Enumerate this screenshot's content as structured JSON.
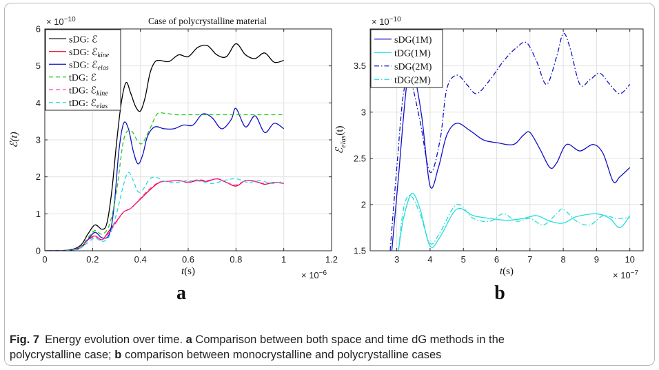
{
  "figure": {
    "caption": {
      "label": "Fig. 7",
      "line1_a": "Energy evolution over time.",
      "a": "a",
      "line1_b": "Comparison between both space and time dG methods in the",
      "line2_a": "polycrystalline case;",
      "b": "b",
      "line2_b": "comparison between monocrystalline and polycrystalline cases"
    },
    "panels": {
      "a": {
        "title": "Case of polycrystalline material",
        "letter": "a",
        "xlabel_var": "t",
        "xlabel_unit": "(s)",
        "ylabel": "ℰ(t)",
        "x_exponent": "× 10",
        "x_exponent_pow": "−6",
        "y_exponent": "× 10",
        "y_exponent_pow": "−10",
        "legend": [
          {
            "label": "sDG: ℰ",
            "sub": ""
          },
          {
            "label": "sDG: ℰ",
            "sub": "kine"
          },
          {
            "label": "sDG: ℰ",
            "sub": "elas"
          },
          {
            "label": "tDG: ℰ",
            "sub": ""
          },
          {
            "label": "tDG: ℰ",
            "sub": "kine"
          },
          {
            "label": "tDG: ℰ",
            "sub": "elas"
          }
        ]
      },
      "b": {
        "letter": "b",
        "xlabel_var": "t",
        "xlabel_unit": "(s)",
        "ylabel": "ℰ",
        "ylabel_sub": "elas",
        "ylabel_tail": "(t)",
        "x_exponent": "× 10",
        "x_exponent_pow": "−7",
        "y_exponent": "× 10",
        "y_exponent_pow": "−10",
        "legend": [
          {
            "label": "sDG(1M)"
          },
          {
            "label": "tDG(1M)"
          },
          {
            "label": "sDG(2M)"
          },
          {
            "label": "tDG(2M)"
          }
        ]
      }
    }
  },
  "chart_data": [
    {
      "type": "line",
      "title": "Case of polycrystalline material",
      "xlabel": "t(s)",
      "ylabel": "ℰ(t)",
      "x_scale": "×10^-6",
      "y_scale": "×10^-10",
      "xlim": [
        0,
        1.2
      ],
      "ylim": [
        0,
        6
      ],
      "xticks": [
        0,
        0.2,
        0.4,
        0.6,
        0.8,
        1,
        1.2
      ],
      "xtick_labels": [
        "0",
        "0.2",
        "0.4",
        "0.6",
        "0.8",
        "1",
        "1.2"
      ],
      "yticks": [
        0,
        1,
        2,
        3,
        4,
        5,
        6
      ],
      "ytick_labels": [
        "0",
        "1",
        "2",
        "3",
        "4",
        "5",
        "6"
      ],
      "grid": true,
      "legend_position": "top-left",
      "series": [
        {
          "name": "sDG: ℰ",
          "color": "#000000",
          "dash": "solid",
          "x": [
            0,
            0.1,
            0.15,
            0.18,
            0.21,
            0.24,
            0.26,
            0.28,
            0.3,
            0.32,
            0.34,
            0.36,
            0.38,
            0.4,
            0.42,
            0.44,
            0.46,
            0.48,
            0.52,
            0.56,
            0.6,
            0.64,
            0.68,
            0.72,
            0.76,
            0.8,
            0.84,
            0.88,
            0.92,
            0.96,
            1.0
          ],
          "y": [
            0,
            0.02,
            0.15,
            0.45,
            0.7,
            0.58,
            0.75,
            1.6,
            2.9,
            4.0,
            4.55,
            4.25,
            3.9,
            3.78,
            4.15,
            4.8,
            5.1,
            5.15,
            5.12,
            5.3,
            5.25,
            5.5,
            5.55,
            5.3,
            5.25,
            5.6,
            5.3,
            5.2,
            5.35,
            5.1,
            5.15
          ]
        },
        {
          "name": "sDG: ℰ_kine",
          "color": "#e8002c",
          "dash": "solid",
          "x": [
            0,
            0.1,
            0.15,
            0.18,
            0.21,
            0.24,
            0.27,
            0.3,
            0.33,
            0.36,
            0.4,
            0.44,
            0.48,
            0.52,
            0.56,
            0.6,
            0.64,
            0.68,
            0.72,
            0.76,
            0.8,
            0.84,
            0.88,
            0.92,
            0.96,
            1.0
          ],
          "y": [
            0,
            0.01,
            0.1,
            0.3,
            0.4,
            0.3,
            0.55,
            0.8,
            1.05,
            1.15,
            1.4,
            1.65,
            1.85,
            1.88,
            1.9,
            1.85,
            1.9,
            1.88,
            1.95,
            1.85,
            1.75,
            1.9,
            1.88,
            1.8,
            1.85,
            1.82
          ]
        },
        {
          "name": "sDG: ℰ_elas",
          "color": "#1010c8",
          "dash": "solid",
          "x": [
            0,
            0.1,
            0.15,
            0.18,
            0.21,
            0.24,
            0.27,
            0.29,
            0.31,
            0.33,
            0.35,
            0.37,
            0.39,
            0.41,
            0.43,
            0.46,
            0.5,
            0.54,
            0.58,
            0.62,
            0.66,
            0.7,
            0.74,
            0.78,
            0.8,
            0.84,
            0.88,
            0.92,
            0.96,
            1.0
          ],
          "y": [
            0,
            0.01,
            0.08,
            0.3,
            0.5,
            0.35,
            0.45,
            1.2,
            2.7,
            3.45,
            3.3,
            2.7,
            2.35,
            2.6,
            3.1,
            3.35,
            3.3,
            3.3,
            3.4,
            3.4,
            3.7,
            3.6,
            3.3,
            3.55,
            3.85,
            3.35,
            3.65,
            3.2,
            3.45,
            3.3
          ]
        },
        {
          "name": "tDG: ℰ",
          "color": "#22cc22",
          "dash": "dashed",
          "x": [
            0,
            0.1,
            0.15,
            0.18,
            0.21,
            0.24,
            0.27,
            0.3,
            0.33,
            0.36,
            0.39,
            0.41,
            0.44,
            0.47,
            0.5,
            0.55,
            0.6,
            0.7,
            0.8,
            0.9,
            1.0
          ],
          "y": [
            0,
            0.01,
            0.12,
            0.35,
            0.55,
            0.45,
            0.7,
            1.6,
            3.0,
            3.25,
            2.95,
            2.92,
            3.3,
            3.7,
            3.72,
            3.68,
            3.68,
            3.68,
            3.68,
            3.68,
            3.68
          ]
        },
        {
          "name": "tDG: ℰ_kine",
          "color": "#ff33cc",
          "dash": "dashed",
          "x": [
            0,
            0.1,
            0.15,
            0.18,
            0.21,
            0.24,
            0.27,
            0.3,
            0.33,
            0.36,
            0.4,
            0.44,
            0.48,
            0.52,
            0.56,
            0.6,
            0.64,
            0.68,
            0.72,
            0.76,
            0.8,
            0.84,
            0.88,
            0.92,
            0.96,
            1.0
          ],
          "y": [
            0,
            0.01,
            0.1,
            0.28,
            0.38,
            0.3,
            0.5,
            0.78,
            1.05,
            1.15,
            1.42,
            1.68,
            1.86,
            1.88,
            1.9,
            1.86,
            1.92,
            1.9,
            1.94,
            1.85,
            1.78,
            1.9,
            1.87,
            1.82,
            1.85,
            1.83
          ]
        },
        {
          "name": "tDG: ℰ_elas",
          "color": "#22dddd",
          "dash": "dashed",
          "x": [
            0,
            0.1,
            0.15,
            0.18,
            0.21,
            0.24,
            0.27,
            0.3,
            0.33,
            0.35,
            0.37,
            0.39,
            0.41,
            0.44,
            0.47,
            0.5,
            0.55,
            0.6,
            0.65,
            0.7,
            0.75,
            0.8,
            0.85,
            0.9,
            0.95,
            1.0
          ],
          "y": [
            0,
            0.01,
            0.08,
            0.22,
            0.35,
            0.25,
            0.4,
            1.0,
            1.8,
            2.12,
            1.9,
            1.6,
            1.65,
            1.95,
            1.98,
            1.88,
            1.85,
            1.9,
            1.88,
            1.82,
            1.9,
            1.95,
            1.85,
            1.9,
            1.82,
            1.88
          ]
        }
      ]
    },
    {
      "type": "line",
      "xlabel": "t(s)",
      "ylabel": "ℰ_elas(t)",
      "x_scale": "×10^-7",
      "y_scale": "×10^-10",
      "xlim": [
        2.2,
        10.4
      ],
      "ylim": [
        1.5,
        3.9
      ],
      "xticks": [
        3,
        4,
        5,
        6,
        7,
        8,
        9,
        10
      ],
      "xtick_labels": [
        "3",
        "4",
        "5",
        "6",
        "7",
        "8",
        "9",
        "10"
      ],
      "yticks": [
        1.5,
        2,
        2.5,
        3,
        3.5
      ],
      "ytick_labels": [
        "1.5",
        "2",
        "2.5",
        "3",
        "3.5"
      ],
      "grid": true,
      "legend_position": "top-left",
      "series": [
        {
          "name": "sDG(1M)",
          "color": "#1010c8",
          "dash": "solid",
          "x": [
            2.85,
            3.05,
            3.3,
            3.5,
            3.75,
            4.0,
            4.25,
            4.5,
            4.8,
            5.2,
            5.6,
            6.0,
            6.5,
            6.8,
            7.0,
            7.3,
            7.6,
            7.8,
            8.1,
            8.5,
            8.9,
            9.2,
            9.5,
            9.7,
            10.0
          ],
          "y": [
            1.5,
            2.3,
            3.3,
            3.42,
            2.95,
            2.2,
            2.4,
            2.75,
            2.88,
            2.8,
            2.7,
            2.67,
            2.65,
            2.75,
            2.78,
            2.6,
            2.4,
            2.45,
            2.65,
            2.58,
            2.65,
            2.55,
            2.25,
            2.3,
            2.4
          ]
        },
        {
          "name": "tDG(1M)",
          "color": "#22dddd",
          "dash": "solid",
          "x": [
            3.05,
            3.2,
            3.45,
            3.7,
            4.0,
            4.3,
            4.8,
            5.3,
            5.8,
            6.3,
            6.8,
            7.2,
            7.6,
            8.0,
            8.4,
            9.0,
            9.4,
            9.7,
            10.0
          ],
          "y": [
            1.5,
            1.85,
            2.12,
            1.95,
            1.55,
            1.65,
            1.95,
            1.88,
            1.85,
            1.83,
            1.85,
            1.88,
            1.82,
            1.8,
            1.87,
            1.9,
            1.85,
            1.75,
            1.88
          ]
        },
        {
          "name": "sDG(2M)",
          "color": "#1010c8",
          "dash": "dashdot",
          "x": [
            2.8,
            3.0,
            3.2,
            3.4,
            3.7,
            4.0,
            4.3,
            4.5,
            4.8,
            5.1,
            5.4,
            5.8,
            6.2,
            6.6,
            6.9,
            7.2,
            7.5,
            7.8,
            8.0,
            8.2,
            8.5,
            8.8,
            9.1,
            9.4,
            9.7,
            10.0
          ],
          "y": [
            1.5,
            2.4,
            3.2,
            3.35,
            2.9,
            2.35,
            2.7,
            3.25,
            3.4,
            3.3,
            3.2,
            3.35,
            3.55,
            3.7,
            3.75,
            3.55,
            3.3,
            3.6,
            3.85,
            3.7,
            3.3,
            3.35,
            3.42,
            3.3,
            3.2,
            3.3
          ]
        },
        {
          "name": "tDG(2M)",
          "color": "#22dddd",
          "dash": "dashdot",
          "x": [
            3.05,
            3.2,
            3.4,
            3.7,
            4.0,
            4.3,
            4.8,
            5.3,
            5.8,
            6.2,
            6.6,
            7.0,
            7.4,
            7.8,
            8.0,
            8.4,
            8.8,
            9.2,
            9.6,
            10.0
          ],
          "y": [
            1.5,
            1.95,
            2.1,
            1.9,
            1.58,
            1.7,
            2.0,
            1.85,
            1.82,
            1.9,
            1.82,
            1.85,
            1.78,
            1.9,
            1.95,
            1.82,
            1.78,
            1.88,
            1.85,
            1.86
          ]
        }
      ]
    }
  ]
}
